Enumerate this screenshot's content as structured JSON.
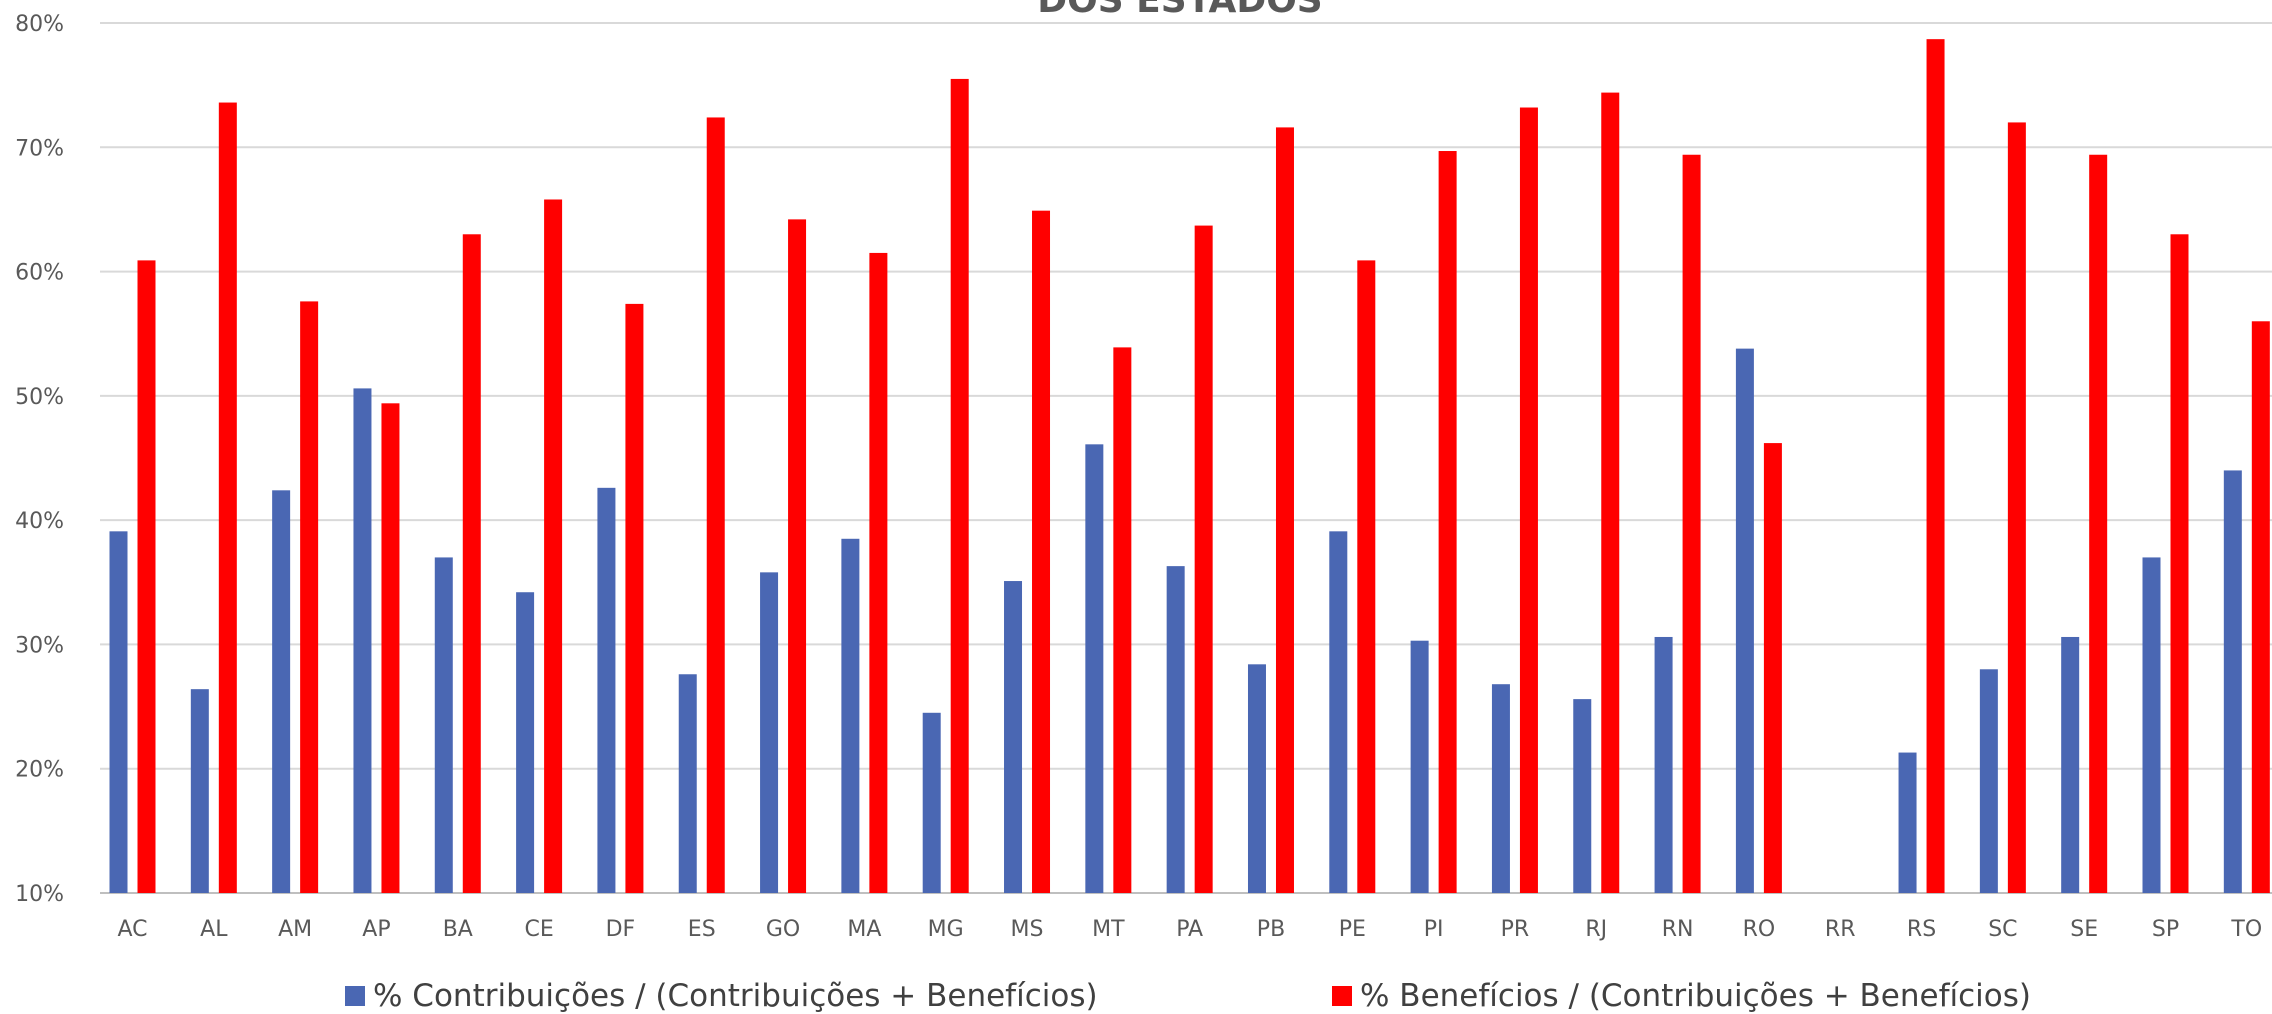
{
  "chart_data": {
    "type": "bar",
    "title": "DOS ESTADOS",
    "xlabel": "",
    "ylabel": "",
    "ylim": [
      0.1,
      0.8
    ],
    "y_ticks": [
      "10%",
      "20%",
      "30%",
      "40%",
      "50%",
      "60%",
      "70%",
      "80%"
    ],
    "grid": true,
    "legend_position": "bottom",
    "categories": [
      "AC",
      "AL",
      "AM",
      "AP",
      "BA",
      "CE",
      "DF",
      "ES",
      "GO",
      "MA",
      "MG",
      "MS",
      "MT",
      "PA",
      "PB",
      "PE",
      "PI",
      "PR",
      "RJ",
      "RN",
      "RO",
      "RR",
      "RS",
      "SC",
      "SE",
      "SP",
      "TO"
    ],
    "series": [
      {
        "name": "% Contribuições / (Contribuições + Benefícios)",
        "color": "#4a67b3",
        "values": [
          0.391,
          0.264,
          0.424,
          0.506,
          0.37,
          0.342,
          0.426,
          0.276,
          0.358,
          0.385,
          0.245,
          0.351,
          0.461,
          0.363,
          0.284,
          0.391,
          0.303,
          0.268,
          0.256,
          0.306,
          0.538,
          null,
          0.213,
          0.28,
          0.306,
          0.37,
          0.44
        ]
      },
      {
        "name": "% Benefícios / (Contribuições + Benefícios)",
        "color": "#ff0000",
        "values": [
          0.609,
          0.736,
          0.576,
          0.494,
          0.63,
          0.658,
          0.574,
          0.724,
          0.642,
          0.615,
          0.755,
          0.649,
          0.539,
          0.637,
          0.716,
          0.609,
          0.697,
          0.732,
          0.744,
          0.694,
          0.462,
          null,
          0.787,
          0.72,
          0.694,
          0.63,
          0.56
        ]
      }
    ]
  }
}
